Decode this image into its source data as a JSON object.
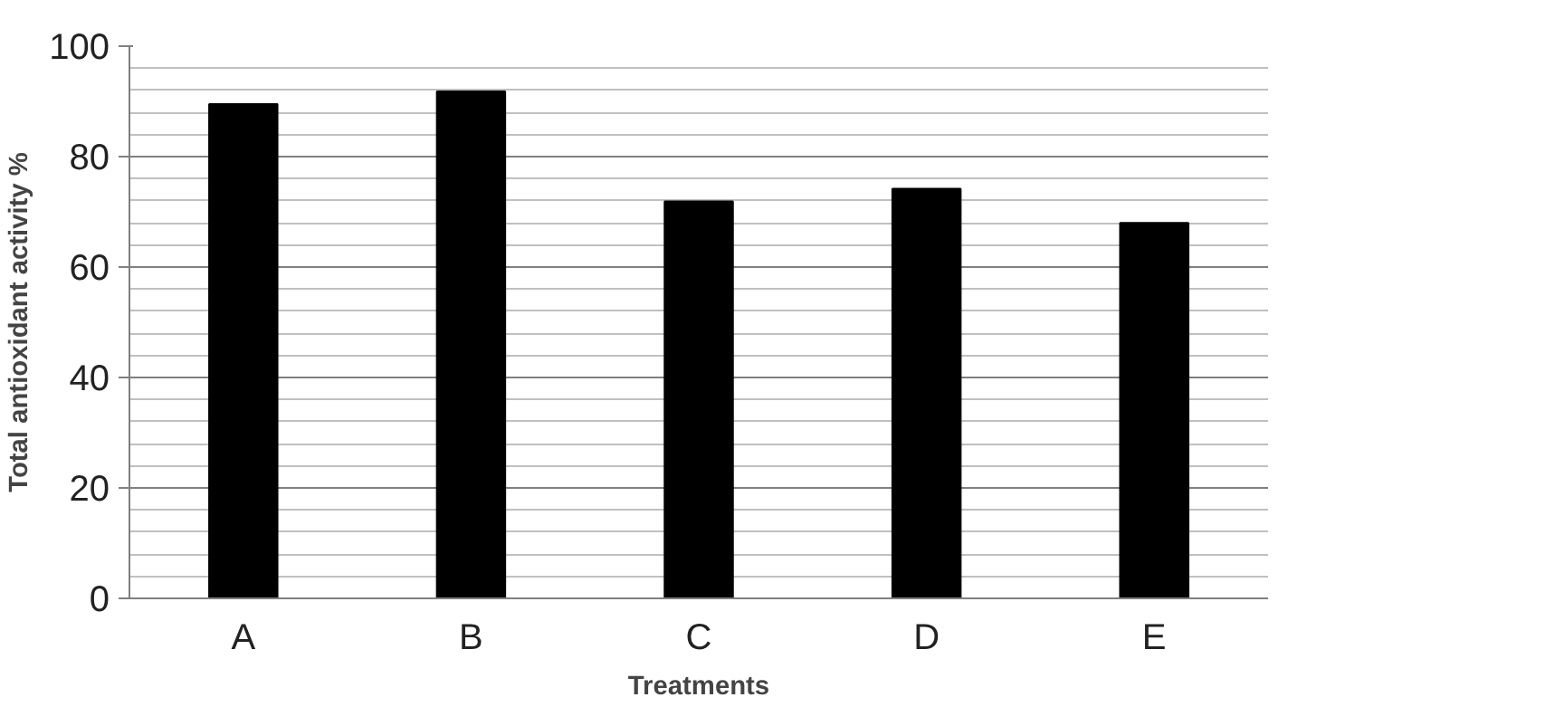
{
  "chart_data": {
    "type": "bar",
    "xlabel": "Treatments",
    "ylabel": "Total antioxidant activity %",
    "categories": [
      "A",
      "B",
      "C",
      "D",
      "E"
    ],
    "values": [
      89.5,
      91.8,
      71.9,
      74.2,
      68
    ],
    "color": "#000000",
    "ylim": [
      0,
      100
    ],
    "yticks": [
      0,
      20,
      40,
      60,
      80,
      100
    ],
    "grid": "y"
  }
}
